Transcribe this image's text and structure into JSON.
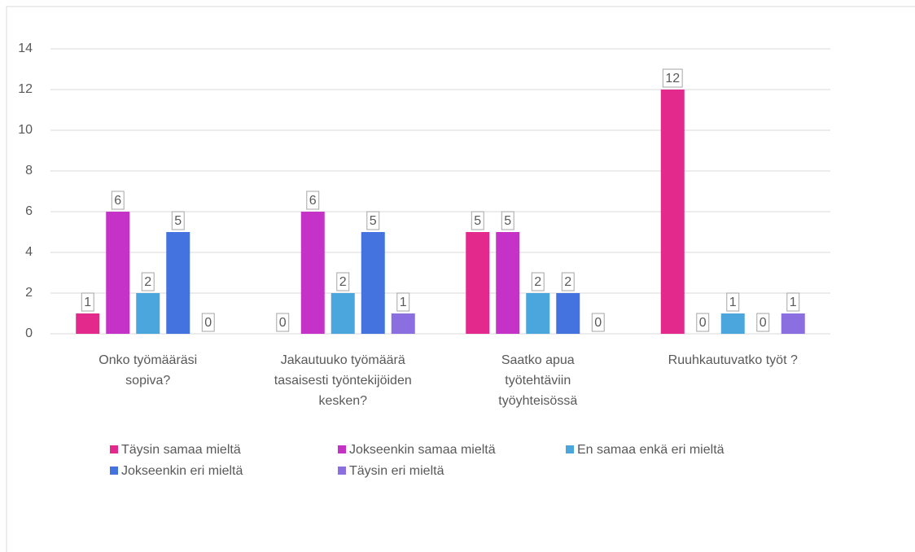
{
  "chart_data": {
    "type": "bar",
    "categories": [
      "Onko työmääräsi\nsopiva?",
      "Jakautuuko työmäärä\ntasaisesti työntekijöiden\nkesken?",
      "Saatko apua\ntyötehtäviin\ntyöyhteisössä",
      "Ruuhkautuvatko työt ?"
    ],
    "series": [
      {
        "name": "Täysin samaa mieltä",
        "color": "#e3298c",
        "values": [
          1,
          0,
          5,
          12
        ]
      },
      {
        "name": "Jokseenkin samaa mieltä",
        "color": "#c532c8",
        "values": [
          6,
          6,
          5,
          0
        ]
      },
      {
        "name": "En samaa enkä eri mieltä",
        "color": "#4ba6dd",
        "values": [
          2,
          2,
          2,
          1
        ]
      },
      {
        "name": "Jokseenkin eri mieltä",
        "color": "#4473e0",
        "values": [
          5,
          5,
          2,
          0
        ]
      },
      {
        "name": "Täysin eri mieltä",
        "color": "#8b6ee0",
        "values": [
          0,
          1,
          0,
          1
        ]
      }
    ],
    "ylim": [
      0,
      14
    ],
    "yticks": [
      0,
      2,
      4,
      6,
      8,
      10,
      12,
      14
    ],
    "grid": true,
    "legend": "bottom"
  }
}
